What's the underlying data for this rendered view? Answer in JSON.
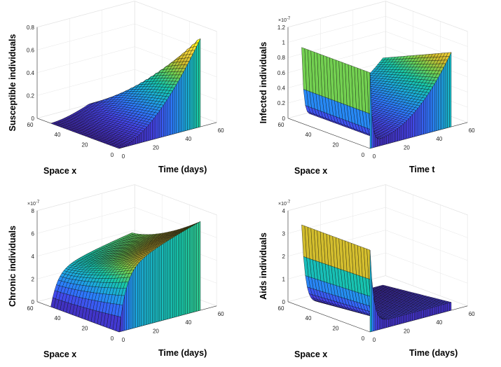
{
  "chart_data": [
    {
      "type": "surface",
      "id": "susceptible",
      "zlabel": "Susceptible individuals",
      "xlabel": "Space x",
      "ylabel": "Time (days)",
      "space_ticks": [
        "60",
        "40",
        "20",
        "0"
      ],
      "time_ticks": [
        "0",
        "20",
        "40",
        "60"
      ],
      "z_ticks": [
        "0",
        "0.2",
        "0.4",
        "0.6",
        "0.8"
      ],
      "z_exponent": "",
      "zlim": [
        0,
        0.8
      ],
      "space_range": [
        0,
        50
      ],
      "time_range": [
        0,
        50
      ],
      "surface_shape": "rising wedge: near 0 at large x / early t, increasing with t to about 0.8 at small x",
      "peak_value": 0.8
    },
    {
      "type": "surface",
      "id": "infected",
      "zlabel": "Infected individuals",
      "xlabel": "Space x",
      "ylabel": "Time t",
      "space_ticks": [
        "60",
        "40",
        "20",
        "0"
      ],
      "time_ticks": [
        "0",
        "20",
        "40",
        "60"
      ],
      "z_ticks": [
        "0",
        "0.2",
        "0.4",
        "0.6",
        "0.8",
        "1",
        "1.2"
      ],
      "z_exponent": "×10⁻⁷",
      "exponent_base": "×10",
      "exponent_power": "-7",
      "zlim": [
        0,
        1.2
      ],
      "space_range": [
        0,
        50
      ],
      "time_range": [
        0,
        50
      ],
      "surface_shape": "initial ridge about 1.0 at t=0 decaying quickly, dip then growth back to about 1.0 at late t",
      "peak_value": 1.0
    },
    {
      "type": "surface",
      "id": "chronic",
      "zlabel": "Chronic individuals",
      "xlabel": "Space x",
      "ylabel": "Time (days)",
      "space_ticks": [
        "60",
        "40",
        "20",
        "0"
      ],
      "time_ticks": [
        "0",
        "20",
        "40",
        "60"
      ],
      "z_ticks": [
        "0",
        "2",
        "4",
        "6",
        "8"
      ],
      "z_exponent": "×10⁻⁷",
      "exponent_base": "×10",
      "exponent_power": "-7",
      "zlim": [
        0,
        8
      ],
      "space_range": [
        0,
        50
      ],
      "time_range": [
        0,
        50
      ],
      "surface_shape": "saturating rise with time to a plateau near 6, increasing to about 7.8 at small x",
      "peak_value": 7.8
    },
    {
      "type": "surface",
      "id": "aids",
      "zlabel": "Aids individuals",
      "xlabel": "Space x",
      "ylabel": "Time (days)",
      "space_ticks": [
        "60",
        "40",
        "20",
        "0"
      ],
      "time_ticks": [
        "0",
        "20",
        "40",
        "60"
      ],
      "z_ticks": [
        "0",
        "1",
        "2",
        "3",
        "4"
      ],
      "z_exponent": "×10⁻⁷",
      "exponent_base": "×10",
      "exponent_power": "-7",
      "zlim": [
        0,
        4
      ],
      "space_range": [
        0,
        50
      ],
      "time_range": [
        0,
        50
      ],
      "surface_shape": "initial ridge about 3.6 at t=0 decaying rapidly to near 0.3",
      "peak_value": 3.6
    }
  ],
  "colormap": [
    "#3e26a8",
    "#4443e8",
    "#2d79ff",
    "#1ba9e0",
    "#17c7aa",
    "#6ed153",
    "#ceba2c",
    "#fbd93a",
    "#f9fb0e"
  ]
}
